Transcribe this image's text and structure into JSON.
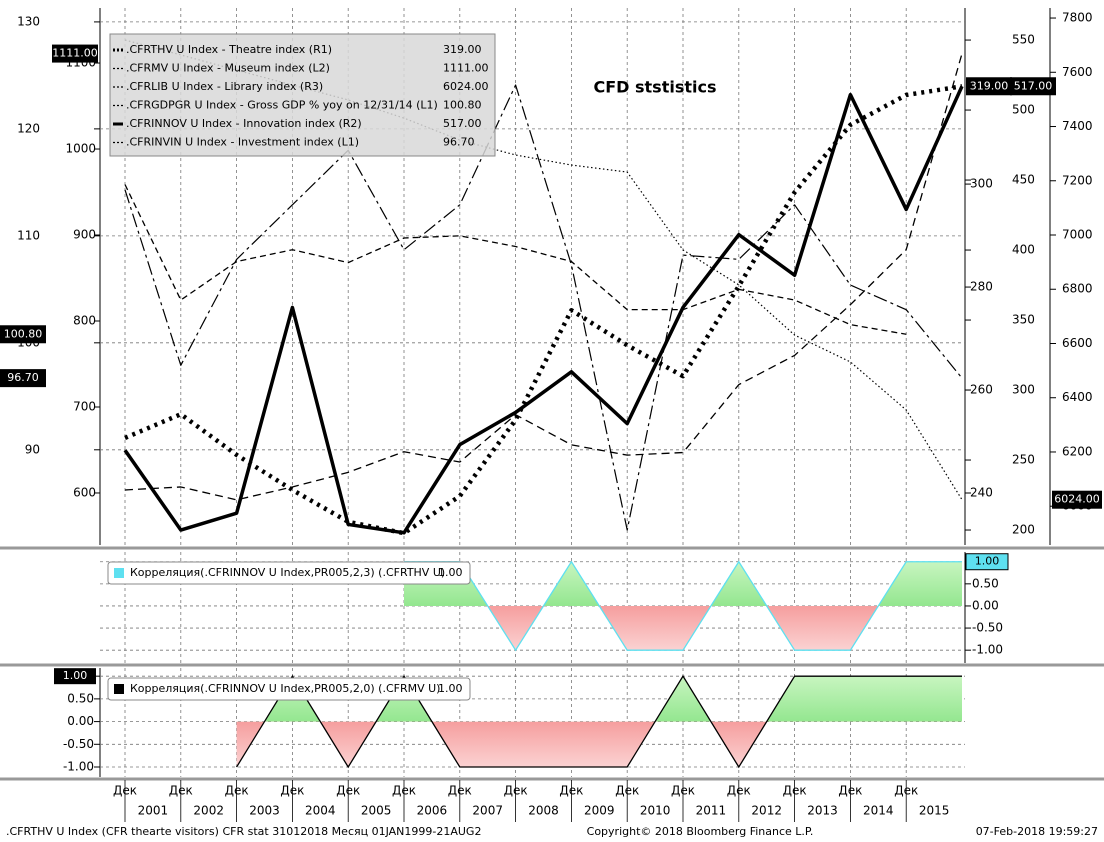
{
  "chart_data": [
    {
      "type": "line",
      "title": "CFD ststistics",
      "x": [
        "2000-12",
        "2001-12",
        "2002-12",
        "2003-12",
        "2004-12",
        "2005-12",
        "2006-12",
        "2007-12",
        "2008-12",
        "2009-12",
        "2010-12",
        "2011-12",
        "2012-12",
        "2013-12",
        "2014-12",
        "2015-12"
      ],
      "xticks": [
        {
          "value": "2000-12",
          "label": "Дек"
        },
        {
          "value": "2001-12",
          "label": "Дек"
        },
        {
          "value": "2002-12",
          "label": "Дек"
        },
        {
          "value": "2003-12",
          "label": "Дек"
        },
        {
          "value": "2004-12",
          "label": "Дек"
        },
        {
          "value": "2005-12",
          "label": "Дек"
        },
        {
          "value": "2006-12",
          "label": "Дек"
        },
        {
          "value": "2007-12",
          "label": "Дек"
        },
        {
          "value": "2008-12",
          "label": "Дек"
        },
        {
          "value": "2009-12",
          "label": "Дек"
        },
        {
          "value": "2010-12",
          "label": "Дек"
        },
        {
          "value": "2011-12",
          "label": "Дек"
        },
        {
          "value": "2012-12",
          "label": "Дек"
        },
        {
          "value": "2013-12",
          "label": "Дек"
        },
        {
          "value": "2014-12",
          "label": "Дек"
        }
      ],
      "year_labels": [
        "2001",
        "2002",
        "2003",
        "2004",
        "2005",
        "2006",
        "2007",
        "2008",
        "2009",
        "2010",
        "2011",
        "2012",
        "2013",
        "2014",
        "2015"
      ],
      "ylim": [
        81.1,
        131.3
      ],
      "yticks": [
        90,
        100,
        110,
        120,
        130
      ],
      "y2lim": [
        539.5,
        1164
      ],
      "y2ticks": [
        600,
        700,
        800,
        900,
        1000,
        1100
      ],
      "y3lim": [
        229.9,
        334.2
      ],
      "y3ticks": [
        240,
        260,
        280,
        300
      ],
      "y4lim": [
        189.3,
        572.9
      ],
      "y4ticks": [
        200,
        250,
        300,
        350,
        400,
        450,
        500,
        550
      ],
      "y5lim": [
        5857,
        7837
      ],
      "y5ticks": [
        6000,
        6200,
        6400,
        6600,
        6800,
        7000,
        7200,
        7400,
        7600,
        7800
      ],
      "grid": true,
      "series": [
        {
          "name": ".CFRTHV U Index - Theatre index (R1)",
          "axis": "y3",
          "style": "heavy-dotted",
          "color": "#000000",
          "last_label": "319.00",
          "values": [
            250.7,
            255.3,
            247.4,
            240.6,
            234.4,
            232.2,
            239.4,
            254.2,
            275.5,
            268.7,
            262.7,
            280.2,
            298.4,
            311.5,
            317.3,
            319
          ]
        },
        {
          "name": ".CFRMV U Index - Museum index (L2)",
          "axis": "y2",
          "style": "dashed",
          "color": "#000000",
          "last_label": "1111.00",
          "values": [
            603.5,
            607,
            592,
            607,
            624,
            648,
            636,
            691,
            656,
            644,
            647,
            726,
            760,
            819,
            883,
            1111
          ]
        },
        {
          "name": ".CFRLIB U Index - Library index (R3)",
          "axis": "y5",
          "style": "dotted",
          "color": "#000000",
          "last_label": "6024.00",
          "values": [
            7719,
            7664,
            7608,
            7553,
            7498,
            7431,
            7350,
            7295,
            7258,
            7232,
            6945,
            6816,
            6631,
            6532,
            6355,
            6024
          ]
        },
        {
          "name": ".CFRGDPGR U Index - Gross GDP % yoy on 12/31/14 (L1)",
          "axis": "y",
          "style": "short-dashed",
          "color": "#000000",
          "last_label": "100.80",
          "values": [
            114.8,
            104.0,
            107.6,
            108.7,
            107.5,
            109.8,
            110.0,
            109.0,
            107.6,
            103.1,
            103.1,
            105.0,
            104.0,
            101.7,
            100.8,
            null
          ]
        },
        {
          "name": ".CFRINNOV U Index - Innovation index (R2)",
          "axis": "y4",
          "style": "solid",
          "color": "#000000",
          "last_label": "517.00",
          "values": [
            257,
            200,
            212,
            359,
            204,
            198,
            261,
            284,
            313,
            276,
            359,
            411,
            382,
            511,
            429,
            517
          ]
        },
        {
          "name": ".CFRINVIN U Index - Investment index (L1)",
          "axis": "y",
          "style": "dash-dot",
          "color": "#000000",
          "last_label": "96.70",
          "values": [
            114.3,
            97.9,
            107.8,
            112.9,
            118.0,
            108.7,
            112.9,
            124.1,
            107.3,
            82.5,
            108.2,
            107.8,
            112.9,
            105.4,
            103.1,
            96.7
          ]
        }
      ]
    },
    {
      "type": "area",
      "name": "Корреляция(.CFRINNOV U Index,PR005,2,3) (.CFRTHV U)",
      "last_label": "1.00",
      "line_color": "#5ee0f0",
      "axis_side": "right",
      "x": [
        "2000-12",
        "2001-12",
        "2002-12",
        "2003-12",
        "2004-12",
        "2005-12",
        "2006-12",
        "2007-12",
        "2008-12",
        "2009-12",
        "2010-12",
        "2011-12",
        "2012-12",
        "2013-12",
        "2014-12",
        "2015-12"
      ],
      "values": [
        null,
        null,
        null,
        null,
        null,
        1,
        1,
        -1,
        1,
        -1,
        -1,
        1,
        -1,
        -1,
        1,
        1
      ],
      "ylim": [
        -1.29,
        1.22
      ],
      "yticks": [
        {
          "value": 1,
          "label": "1.00"
        },
        {
          "value": 0.5,
          "label": "0.50"
        },
        {
          "value": 0,
          "label": "0.00"
        },
        {
          "value": -0.5,
          "label": "-0.50"
        },
        {
          "value": -1,
          "label": "-1.00"
        }
      ]
    },
    {
      "type": "area",
      "name": "Корреляция(.CFRINNOV U Index,PR005,2,0) (.CFRMV U)",
      "last_label": "1.00",
      "line_color": "#000000",
      "axis_side": "left",
      "x": [
        "2000-12",
        "2001-12",
        "2002-12",
        "2003-12",
        "2004-12",
        "2005-12",
        "2006-12",
        "2007-12",
        "2008-12",
        "2009-12",
        "2010-12",
        "2011-12",
        "2012-12",
        "2013-12",
        "2014-12",
        "2015-12"
      ],
      "values": [
        null,
        null,
        -1,
        1,
        -1,
        1,
        -1,
        -1,
        -1,
        -1,
        1,
        -1,
        1,
        1,
        1,
        1
      ],
      "ylim": [
        -1.22,
        1.18
      ],
      "yticks": [
        {
          "value": 1,
          "label": "1.00"
        },
        {
          "value": 0.5,
          "label": "0.50"
        },
        {
          "value": 0,
          "label": "0.00"
        },
        {
          "value": -0.5,
          "label": "-0.50"
        },
        {
          "value": -1,
          "label": "-1.00"
        }
      ]
    }
  ],
  "footer": {
    "left": ".CFRTHV U Index (CFR thearte visitors) CFR stat 31012018  Месяц 01JAN1999-21AUG2",
    "center": "Copyright© 2018 Bloomberg Finance L.P.",
    "right": "07-Feb-2018 19:59:27"
  }
}
